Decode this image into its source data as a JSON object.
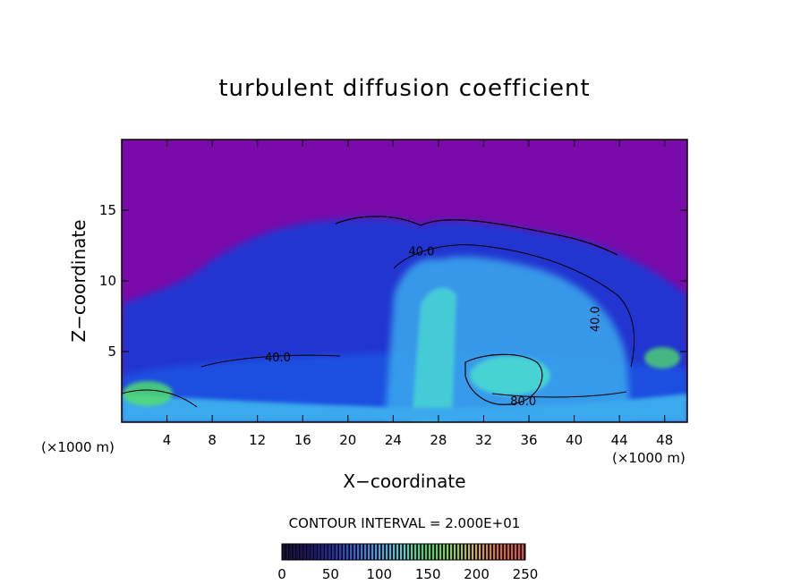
{
  "chart_data": {
    "type": "heatmap",
    "title": "turbulent diffusion coefficient",
    "xlabel": "X−coordinate",
    "ylabel": "Z−coordinate",
    "x_unit": "(×1000 m)",
    "z_unit": "(×1000 m)",
    "xlim": [
      0,
      50
    ],
    "ylim": [
      0,
      20
    ],
    "x_ticks": [
      4,
      8,
      12,
      16,
      20,
      24,
      28,
      32,
      36,
      40,
      44,
      48
    ],
    "y_ticks": [
      5,
      10,
      15
    ],
    "contour_interval_text": "CONTOUR INTERVAL = 2.000E+01",
    "contour_labels": [
      {
        "text": "40.0",
        "x": 26.5,
        "z": 11.8
      },
      {
        "text": "40.0",
        "x": 13.8,
        "z": 4.3
      },
      {
        "text": "80.0",
        "x": 35.5,
        "z": 1.2
      },
      {
        "text": "40.0",
        "x": 42.2,
        "z": 7.3,
        "rotated": true
      }
    ],
    "colorbar": {
      "range": [
        0,
        250
      ],
      "ticks": [
        0,
        50,
        100,
        150,
        200,
        250
      ],
      "colors": [
        "#120a38",
        "#1a0d74",
        "#1c2ab8",
        "#2f69e6",
        "#3fa7f0",
        "#43d8d8",
        "#3bd96a",
        "#88d93b",
        "#d4b03b",
        "#e06a3a",
        "#e84a4a"
      ]
    },
    "field_colors": {
      "background": "#7b0aaa",
      "low": "#2236d0",
      "mid": "#1f4fe0",
      "high": "#3ba9ee",
      "peak": "#4ad8d2",
      "max": "#52e26a"
    }
  }
}
